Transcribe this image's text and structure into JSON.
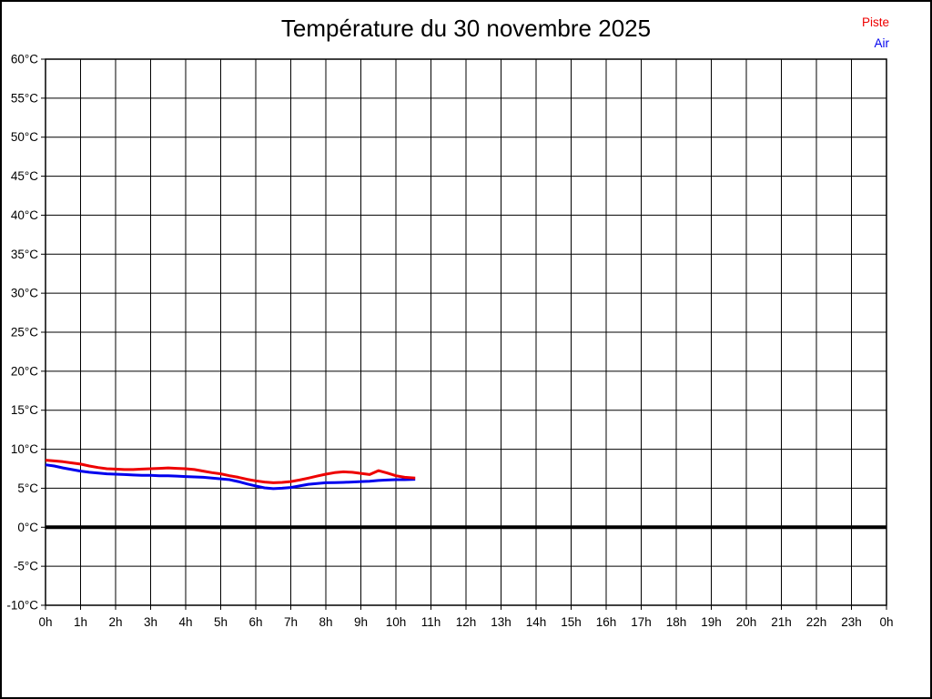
{
  "title": "Température du 30 novembre 2025",
  "legend": {
    "items": [
      {
        "label": "Piste",
        "color": "#ee0000"
      },
      {
        "label": "Air",
        "color": "#0000ee"
      }
    ]
  },
  "chart_data": {
    "type": "line",
    "title": "Température du 30 novembre 2025",
    "xlabel": "",
    "ylabel": "",
    "xlim": [
      0,
      24
    ],
    "ylim": [
      -10,
      60
    ],
    "y_tick_step": 5,
    "x_ticks": [
      "0h",
      "1h",
      "2h",
      "3h",
      "4h",
      "5h",
      "6h",
      "7h",
      "8h",
      "9h",
      "10h",
      "11h",
      "12h",
      "13h",
      "14h",
      "15h",
      "16h",
      "17h",
      "18h",
      "19h",
      "20h",
      "21h",
      "22h",
      "23h",
      "0h"
    ],
    "y_ticks": [
      "60°C",
      "55°C",
      "50°C",
      "45°C",
      "40°C",
      "35°C",
      "30°C",
      "25°C",
      "20°C",
      "15°C",
      "10°C",
      "5°C",
      "0°C",
      "-5°C",
      "-10°C"
    ],
    "grid": true,
    "zero_line": true,
    "legend_position": "top-right",
    "grid_color": "#000000",
    "zero_line_color": "#000000",
    "series": [
      {
        "name": "Piste",
        "color": "#ee0000",
        "points": [
          [
            0,
            8.6
          ],
          [
            0.25,
            8.5
          ],
          [
            0.5,
            8.4
          ],
          [
            0.75,
            8.25
          ],
          [
            1,
            8.1
          ],
          [
            1.25,
            7.85
          ],
          [
            1.5,
            7.65
          ],
          [
            1.75,
            7.5
          ],
          [
            2,
            7.45
          ],
          [
            2.25,
            7.4
          ],
          [
            2.5,
            7.4
          ],
          [
            2.75,
            7.45
          ],
          [
            3,
            7.5
          ],
          [
            3.25,
            7.55
          ],
          [
            3.5,
            7.6
          ],
          [
            3.75,
            7.55
          ],
          [
            4,
            7.5
          ],
          [
            4.25,
            7.4
          ],
          [
            4.5,
            7.2
          ],
          [
            4.75,
            7.0
          ],
          [
            5,
            6.85
          ],
          [
            5.25,
            6.6
          ],
          [
            5.5,
            6.4
          ],
          [
            5.75,
            6.15
          ],
          [
            6,
            5.95
          ],
          [
            6.25,
            5.8
          ],
          [
            6.5,
            5.7
          ],
          [
            6.75,
            5.75
          ],
          [
            7,
            5.85
          ],
          [
            7.25,
            6.05
          ],
          [
            7.5,
            6.3
          ],
          [
            7.75,
            6.55
          ],
          [
            8,
            6.8
          ],
          [
            8.25,
            7.0
          ],
          [
            8.5,
            7.1
          ],
          [
            8.75,
            7.05
          ],
          [
            9,
            6.9
          ],
          [
            9.25,
            6.75
          ],
          [
            9.5,
            7.25
          ],
          [
            9.75,
            6.95
          ],
          [
            10,
            6.6
          ],
          [
            10.25,
            6.4
          ],
          [
            10.55,
            6.3
          ]
        ]
      },
      {
        "name": "Air",
        "color": "#0000ee",
        "points": [
          [
            0,
            8.0
          ],
          [
            0.25,
            7.85
          ],
          [
            0.5,
            7.6
          ],
          [
            0.75,
            7.4
          ],
          [
            1,
            7.2
          ],
          [
            1.25,
            7.05
          ],
          [
            1.5,
            6.95
          ],
          [
            1.75,
            6.85
          ],
          [
            2,
            6.8
          ],
          [
            2.25,
            6.75
          ],
          [
            2.5,
            6.7
          ],
          [
            2.75,
            6.65
          ],
          [
            3,
            6.65
          ],
          [
            3.25,
            6.6
          ],
          [
            3.5,
            6.6
          ],
          [
            3.75,
            6.55
          ],
          [
            4,
            6.5
          ],
          [
            4.25,
            6.45
          ],
          [
            4.5,
            6.4
          ],
          [
            4.75,
            6.3
          ],
          [
            5,
            6.2
          ],
          [
            5.25,
            6.1
          ],
          [
            5.5,
            5.85
          ],
          [
            5.75,
            5.55
          ],
          [
            6,
            5.3
          ],
          [
            6.25,
            5.05
          ],
          [
            6.5,
            4.95
          ],
          [
            6.75,
            5.0
          ],
          [
            7,
            5.1
          ],
          [
            7.25,
            5.3
          ],
          [
            7.5,
            5.5
          ],
          [
            7.75,
            5.6
          ],
          [
            8,
            5.7
          ],
          [
            8.25,
            5.72
          ],
          [
            8.5,
            5.75
          ],
          [
            8.75,
            5.8
          ],
          [
            9,
            5.85
          ],
          [
            9.25,
            5.9
          ],
          [
            9.5,
            6.0
          ],
          [
            9.75,
            6.05
          ],
          [
            10,
            6.1
          ],
          [
            10.25,
            6.1
          ],
          [
            10.55,
            6.15
          ]
        ]
      }
    ]
  }
}
